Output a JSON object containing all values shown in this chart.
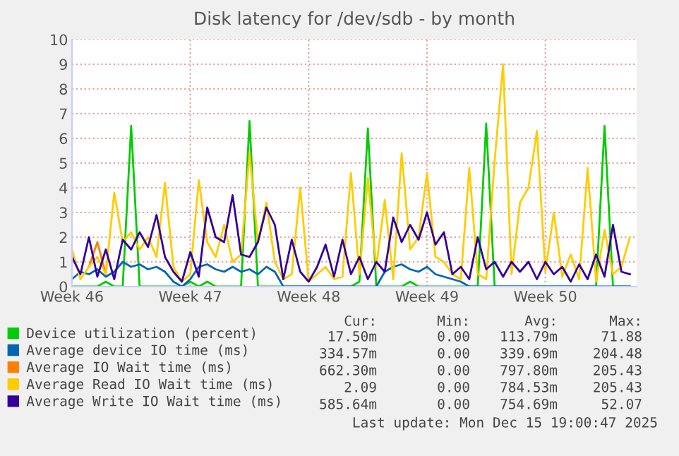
{
  "chart_data": {
    "type": "line",
    "title": "Disk latency for /dev/sdb - by month",
    "categories": [
      "Week 46",
      null,
      null,
      null,
      null,
      null,
      null,
      null,
      null,
      null,
      null,
      null,
      null,
      null,
      "Week 47",
      null,
      null,
      null,
      null,
      null,
      null,
      null,
      null,
      null,
      null,
      null,
      null,
      null,
      "Week 48",
      null,
      null,
      null,
      null,
      null,
      null,
      null,
      null,
      null,
      null,
      null,
      null,
      null,
      "Week 49",
      null,
      null,
      null,
      null,
      null,
      null,
      null,
      null,
      null,
      null,
      null,
      null,
      null,
      "Week 50",
      null,
      null,
      null,
      null,
      null,
      null,
      null,
      null,
      null,
      null
    ],
    "series": [
      {
        "name": "Device utilization (percent)",
        "color": "#00cc00",
        "values": [
          0,
          0,
          0,
          0,
          0.2,
          0,
          0,
          6.5,
          0,
          0,
          0,
          0,
          0,
          0,
          0.2,
          0,
          0.2,
          0,
          0,
          0,
          0,
          6.7,
          0,
          0,
          0,
          0,
          0,
          0,
          0,
          0,
          0,
          0,
          0,
          0,
          0.2,
          6.4,
          0,
          0,
          0,
          0,
          0.2,
          0,
          0,
          0,
          0,
          0,
          0,
          0,
          0,
          6.6,
          0,
          0,
          0,
          0,
          0,
          0,
          0,
          0,
          0,
          0,
          0,
          0,
          0,
          6.5,
          0,
          0,
          0
        ]
      },
      {
        "name": "Average device IO time (ms)",
        "color": "#0066b3",
        "values": [
          0.3,
          0.6,
          0.5,
          0.7,
          0.4,
          0.6,
          1.0,
          0.8,
          0.9,
          0.7,
          0.8,
          0.6,
          0.2,
          0,
          0.3,
          0.8,
          0.9,
          0.7,
          0.6,
          0.8,
          0.6,
          0.7,
          0.5,
          0.8,
          0.6,
          0,
          0,
          0,
          0,
          0,
          0,
          0,
          0,
          0,
          0,
          0,
          0,
          0.6,
          0.8,
          0.9,
          0.7,
          0.6,
          0.8,
          0.5,
          0.4,
          0.3,
          0.2,
          0,
          0,
          0,
          0,
          0,
          0,
          0,
          0,
          0,
          0,
          0,
          0,
          0,
          0,
          0,
          0,
          0,
          0,
          0,
          0
        ]
      },
      {
        "name": "Average IO Wait time (ms)",
        "color": "#ff8000",
        "values": [
          null,
          null,
          0.8,
          1.8,
          0.5,
          null,
          null,
          null,
          null,
          null,
          null,
          null,
          null,
          null,
          null,
          null,
          null,
          null,
          null,
          null,
          null,
          null,
          null,
          null,
          null,
          null,
          null,
          null,
          null,
          null,
          null,
          null,
          null,
          null,
          null,
          null,
          null,
          null,
          null,
          null,
          null,
          null,
          null,
          null,
          null,
          null,
          null,
          null,
          null,
          null,
          null,
          null,
          null,
          null,
          null,
          null,
          null,
          null,
          null,
          null,
          null,
          null,
          null,
          null,
          null,
          null,
          null
        ]
      },
      {
        "name": "Average Read IO Wait time (ms)",
        "color": "#ffcc00",
        "values": [
          1.5,
          0.3,
          0.8,
          1.2,
          0.5,
          3.8,
          1.8,
          2.2,
          1.5,
          2.0,
          1.2,
          4.2,
          0.8,
          0.2,
          0.5,
          4.3,
          1.8,
          1.2,
          2.5,
          1.0,
          1.3,
          5.4,
          1.8,
          3.4,
          1.0,
          0.3,
          0.5,
          4.0,
          0.2,
          0.5,
          0.8,
          0.3,
          0.4,
          4.6,
          0.5,
          4.4,
          0.8,
          3.5,
          0.3,
          5.4,
          1.5,
          2.0,
          4.6,
          1.2,
          1.0,
          0.5,
          0.3,
          4.8,
          0.5,
          0.3,
          5.1,
          9.0,
          0.5,
          3.4,
          4.0,
          6.3,
          0.6,
          3.0,
          0.4,
          1.3,
          0.3,
          4.8,
          0.2,
          2.3,
          0.5,
          0.8,
          2.0
        ]
      },
      {
        "name": "Average Write IO Wait time (ms)",
        "color": "#330099",
        "values": [
          1.2,
          0.5,
          2.0,
          0.4,
          1.5,
          0.3,
          1.9,
          1.5,
          2.2,
          1.6,
          2.9,
          1.2,
          0.6,
          0.2,
          1.4,
          0.4,
          3.2,
          2.0,
          1.8,
          3.7,
          1.3,
          1.2,
          1.8,
          3.2,
          2.5,
          0.3,
          1.9,
          0.6,
          0.2,
          0.8,
          1.7,
          0.4,
          1.9,
          0.5,
          1.2,
          0.3,
          1.0,
          0.6,
          2.8,
          1.8,
          2.5,
          1.9,
          3.0,
          1.7,
          2.2,
          0.5,
          0.8,
          0.3,
          2.0,
          0.7,
          1.0,
          0.4,
          1.0,
          0.6,
          1.0,
          0.3,
          1.0,
          0.5,
          0.8,
          0.2,
          0.9,
          0.3,
          1.3,
          0.4,
          2.5,
          0.6,
          0.5
        ]
      }
    ],
    "ylim": [
      0,
      10
    ],
    "yticks": [
      0,
      1,
      2,
      3,
      4,
      5,
      6,
      7,
      8,
      9,
      10
    ],
    "grid": true,
    "legend": "bottom",
    "marker": "none",
    "line_style": "solid",
    "annotations": [
      "Cur:",
      "Min:",
      "Avg:",
      "Max:",
      "17.50m",
      "0.00",
      "113.79m",
      "71.88",
      "334.57m",
      "0.00",
      "339.69m",
      "204.48",
      "662.30m",
      "0.00",
      "797.80m",
      "205.43",
      "2.09",
      "0.00",
      "784.53m",
      "205.43",
      "585.64m",
      "0.00",
      "754.69m",
      "52.07",
      "Last update: Mon Dec 15 19:00:47 2025"
    ]
  }
}
